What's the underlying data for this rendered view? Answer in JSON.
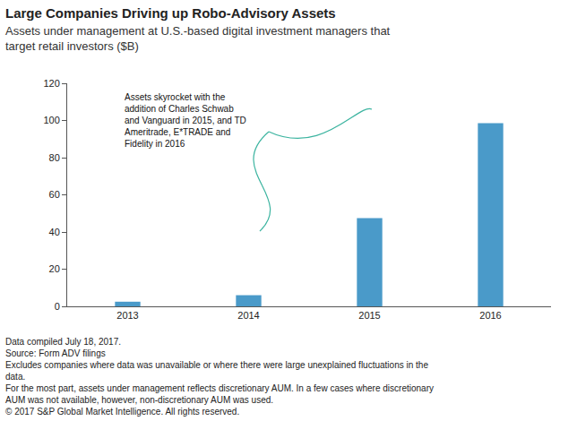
{
  "chart_data": {
    "type": "bar",
    "title": "Large Companies Driving up Robo-Advisory Assets",
    "subtitle": [
      "Assets under management at U.S.-based digital investment managers that",
      "target retail investors ($B)"
    ],
    "categories": [
      "2013",
      "2014",
      "2015",
      "2016"
    ],
    "values": [
      2.5,
      6,
      47.5,
      98.5
    ],
    "color": "#4a9ac9",
    "ylim": [
      0,
      120
    ],
    "yticks": [
      0,
      20,
      40,
      60,
      80,
      100,
      120
    ],
    "grid": false,
    "annotations": [
      [
        "Assets skyrocket with the",
        "addition of Charles Schwab",
        "and Vanguard in 2015, and TD",
        "Ameritrade, E*TRADE and",
        "Fidelity in 2016"
      ]
    ],
    "notes": [
      "Data compiled July 18, 2017.",
      "Source: Form ADV filings",
      "Excludes companies where data was unavailable or where there were large unexplained fluctuations in the",
      "data.",
      "For the most part, assets under management reflects discretionary AUM. In a few cases where discretionary",
      "AUM was not available, however, non-discretionary AUM was used.",
      "© 2017 S&P Global Market Intelligence. All rights reserved."
    ]
  }
}
